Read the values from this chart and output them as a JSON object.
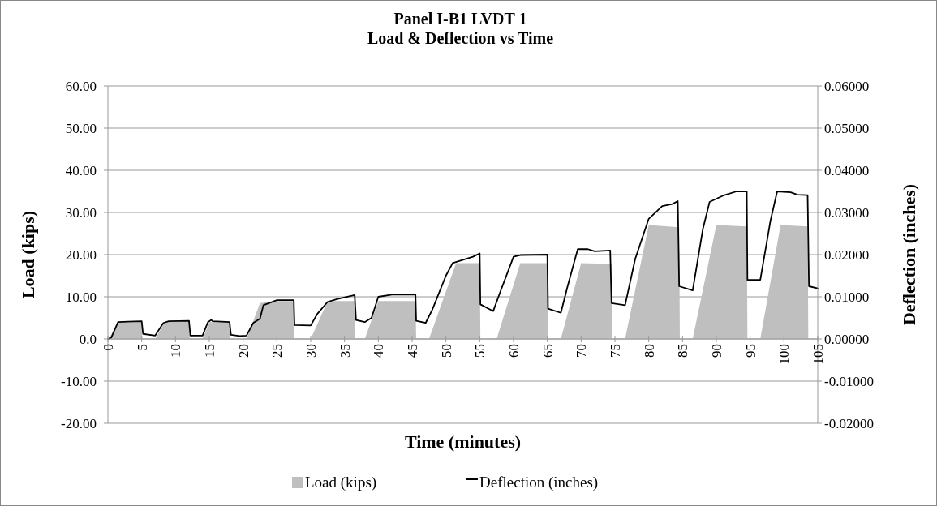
{
  "chart_data": {
    "type": "area",
    "title": "Panel I-B1 LVDT 1",
    "subtitle": "Load & Deflection vs Time",
    "xlabel": "Time (minutes)",
    "ylabel": "Load (kips)",
    "y2label": "Deflection (inches)",
    "xlim": [
      0,
      105
    ],
    "xticks": [
      0,
      5,
      10,
      15,
      20,
      25,
      30,
      35,
      40,
      45,
      50,
      55,
      60,
      65,
      70,
      75,
      80,
      85,
      90,
      95,
      100,
      105
    ],
    "ylim": [
      -20,
      60
    ],
    "yticks": [
      {
        "value": -20,
        "label": "-20.00"
      },
      {
        "value": -10,
        "label": "-10.00"
      },
      {
        "value": 0,
        "label": "0.0"
      },
      {
        "value": 10,
        "label": "10.00"
      },
      {
        "value": 20,
        "label": "20.00"
      },
      {
        "value": 30,
        "label": "30.00"
      },
      {
        "value": 40,
        "label": "40.00"
      },
      {
        "value": 50,
        "label": "50.00"
      },
      {
        "value": 60,
        "label": "60.00"
      }
    ],
    "y2lim": [
      -0.02,
      0.06
    ],
    "y2ticks": [
      {
        "value": -0.02,
        "label": "-0.02000"
      },
      {
        "value": -0.01,
        "label": "-0.01000"
      },
      {
        "value": 0,
        "label": "0.00000"
      },
      {
        "value": 0.01,
        "label": "0.01000"
      },
      {
        "value": 0.02,
        "label": "0.02000"
      },
      {
        "value": 0.03,
        "label": "0.03000"
      },
      {
        "value": 0.04,
        "label": "0.04000"
      },
      {
        "value": 0.05,
        "label": "0.05000"
      },
      {
        "value": 0.06,
        "label": "0.06000"
      }
    ],
    "grid": "y",
    "legend": "bottom",
    "series": [
      {
        "name": "Load (kips)",
        "color": "#bfbfbf",
        "x": [
          0,
          0.5,
          1.5,
          3,
          5,
          5.1,
          7,
          8.5,
          12,
          12.1,
          14,
          15,
          18,
          18.1,
          20.5,
          22.5,
          25,
          27.5,
          27.6,
          30,
          32.5,
          36.5,
          36.6,
          38,
          40,
          45.5,
          45.6,
          47.5,
          51.5,
          55,
          55.1,
          57.5,
          61,
          65,
          65.1,
          67,
          70,
          74.5,
          74.6,
          76.5,
          80,
          84.5,
          84.6,
          86.5,
          90,
          94.5,
          94.6,
          96.5,
          99.5,
          103.5,
          103.6
        ],
        "values": [
          0,
          1,
          4,
          4,
          4,
          0,
          0,
          4.3,
          4.3,
          0,
          0,
          4,
          4,
          0,
          0,
          8.5,
          9,
          9,
          0,
          0,
          9,
          9,
          0,
          0,
          9,
          9,
          0,
          0,
          18,
          18,
          0,
          0,
          18,
          18,
          0,
          0,
          18,
          17.8,
          0,
          0,
          27,
          26.5,
          0,
          0,
          27,
          26.7,
          0,
          0,
          27,
          26.7,
          0
        ]
      },
      {
        "name": "Deflection (inches)",
        "type": "line",
        "axis": "y2",
        "color": "#000000",
        "x": [
          0,
          0.5,
          1.5,
          3,
          5,
          5.2,
          7,
          8.2,
          9,
          12,
          12.2,
          14,
          14.8,
          15.3,
          15.5,
          18,
          18.2,
          19.5,
          20.5,
          21.5,
          22.5,
          23,
          25,
          27.5,
          27.6,
          30,
          31,
          32.5,
          34,
          36.5,
          36.7,
          38,
          39,
          40,
          42,
          45.5,
          45.6,
          47,
          48,
          50,
          51,
          54,
          55,
          55.1,
          57,
          58,
          60,
          61,
          65,
          65.1,
          67,
          68,
          69.5,
          71,
          72,
          74.3,
          74.5,
          76.5,
          78,
          80,
          82,
          83.5,
          84.3,
          84.5,
          86.5,
          88,
          89,
          91,
          93,
          94.5,
          94.6,
          96.5,
          98,
          99,
          101,
          102,
          103.5,
          103.7,
          105
        ],
        "values": [
          0,
          0.0003,
          0.004,
          0.0041,
          0.0042,
          0.0012,
          0.0008,
          0.0038,
          0.0042,
          0.0043,
          0.0008,
          0.0008,
          0.004,
          0.0045,
          0.0042,
          0.004,
          0.001,
          0.0007,
          0.0008,
          0.0038,
          0.0048,
          0.008,
          0.0092,
          0.0092,
          0.0033,
          0.0032,
          0.006,
          0.0088,
          0.0095,
          0.0104,
          0.0045,
          0.004,
          0.005,
          0.01,
          0.0105,
          0.0105,
          0.0043,
          0.0038,
          0.007,
          0.015,
          0.018,
          0.0195,
          0.0203,
          0.0082,
          0.0066,
          0.011,
          0.0195,
          0.0199,
          0.02,
          0.0072,
          0.0062,
          0.0125,
          0.0213,
          0.0213,
          0.0208,
          0.021,
          0.0085,
          0.008,
          0.019,
          0.0285,
          0.0315,
          0.032,
          0.0327,
          0.0125,
          0.0115,
          0.026,
          0.0325,
          0.034,
          0.035,
          0.035,
          0.014,
          0.014,
          0.028,
          0.035,
          0.0348,
          0.0342,
          0.0341,
          0.0125,
          0.012
        ]
      }
    ]
  }
}
